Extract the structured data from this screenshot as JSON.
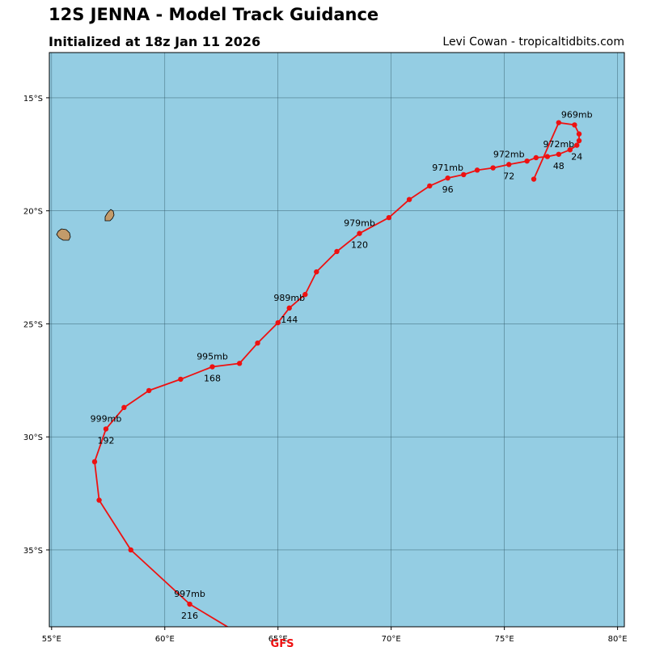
{
  "title": "12S JENNA - Model Track Guidance",
  "subtitle": "Initialized at 18z Jan 11 2026",
  "credit": "Levi Cowan - tropicaltidbits.com",
  "colors": {
    "ocean": "#94cde3",
    "land": "#c39b6a",
    "track": "#ee1111",
    "grid": "#2f5564"
  },
  "map": {
    "lon_range": [
      54.9,
      80.3
    ],
    "lat_range": [
      -38.4,
      -13.0
    ],
    "x_ticks": [
      {
        "value": 55,
        "label": "55°E"
      },
      {
        "value": 60,
        "label": "60°E"
      },
      {
        "value": 65,
        "label": "65°E"
      },
      {
        "value": 70,
        "label": "70°E"
      },
      {
        "value": 75,
        "label": "75°E"
      },
      {
        "value": 80,
        "label": "80°E"
      }
    ],
    "y_ticks": [
      {
        "value": -15,
        "label": "15°S"
      },
      {
        "value": -20,
        "label": "20°S"
      },
      {
        "value": -25,
        "label": "25°S"
      },
      {
        "value": -30,
        "label": "30°S"
      },
      {
        "value": -35,
        "label": "35°S"
      }
    ],
    "islands": [
      {
        "name": "Réunion",
        "lon": 55.5,
        "lat": -21.1
      },
      {
        "name": "Mauritius",
        "lon": 57.55,
        "lat": -20.25
      }
    ]
  },
  "track": {
    "model": "GFS",
    "points": [
      {
        "lon": 76.3,
        "lat": -18.6
      },
      {
        "lon": 77.4,
        "lat": -16.1
      },
      {
        "lon": 78.1,
        "lat": -16.2
      },
      {
        "lon": 78.3,
        "lat": -16.6
      },
      {
        "lon": 78.3,
        "lat": -16.9
      },
      {
        "lon": 78.2,
        "lat": -17.1
      },
      {
        "lon": 77.9,
        "lat": -17.3
      },
      {
        "lon": 77.4,
        "lat": -17.5
      },
      {
        "lon": 76.9,
        "lat": -17.6
      },
      {
        "lon": 76.4,
        "lat": -17.65
      },
      {
        "lon": 76.0,
        "lat": -17.8
      },
      {
        "lon": 75.2,
        "lat": -17.95
      },
      {
        "lon": 74.5,
        "lat": -18.1
      },
      {
        "lon": 73.8,
        "lat": -18.2
      },
      {
        "lon": 73.2,
        "lat": -18.4
      },
      {
        "lon": 72.5,
        "lat": -18.55
      },
      {
        "lon": 71.7,
        "lat": -18.9
      },
      {
        "lon": 70.8,
        "lat": -19.5
      },
      {
        "lon": 69.9,
        "lat": -20.3
      },
      {
        "lon": 68.6,
        "lat": -21.0
      },
      {
        "lon": 67.6,
        "lat": -21.8
      },
      {
        "lon": 66.7,
        "lat": -22.7
      },
      {
        "lon": 66.2,
        "lat": -23.7
      },
      {
        "lon": 65.5,
        "lat": -24.3
      },
      {
        "lon": 65.0,
        "lat": -24.95
      },
      {
        "lon": 64.1,
        "lat": -25.85
      },
      {
        "lon": 63.3,
        "lat": -26.75
      },
      {
        "lon": 62.1,
        "lat": -26.9
      },
      {
        "lon": 60.7,
        "lat": -27.45
      },
      {
        "lon": 59.3,
        "lat": -27.95
      },
      {
        "lon": 58.2,
        "lat": -28.7
      },
      {
        "lon": 57.4,
        "lat": -29.65
      },
      {
        "lon": 56.9,
        "lat": -31.1
      },
      {
        "lon": 57.1,
        "lat": -32.8
      },
      {
        "lon": 58.5,
        "lat": -35.0
      },
      {
        "lon": 61.1,
        "lat": -37.4
      },
      {
        "lon": 63.1,
        "lat": -38.6
      }
    ],
    "pressure_labels": [
      {
        "text": "969mb",
        "lon": 78.2,
        "lat": -16.2
      },
      {
        "text": "972mb",
        "lon": 77.4,
        "lat": -17.5
      },
      {
        "text": "972mb",
        "lon": 75.2,
        "lat": -17.95
      },
      {
        "text": "971mb",
        "lon": 72.5,
        "lat": -18.55
      },
      {
        "text": "979mb",
        "lon": 68.6,
        "lat": -21.0
      },
      {
        "text": "989mb",
        "lon": 65.5,
        "lat": -24.3
      },
      {
        "text": "995mb",
        "lon": 62.1,
        "lat": -26.9
      },
      {
        "text": "999mb",
        "lon": 57.4,
        "lat": -29.65
      },
      {
        "text": "997mb",
        "lon": 61.1,
        "lat": -37.4
      }
    ],
    "hour_labels": [
      {
        "text": "24",
        "lon": 78.2,
        "lat": -17.1
      },
      {
        "text": "48",
        "lon": 77.4,
        "lat": -17.5
      },
      {
        "text": "72",
        "lon": 75.2,
        "lat": -17.95
      },
      {
        "text": "96",
        "lon": 72.5,
        "lat": -18.55
      },
      {
        "text": "120",
        "lon": 68.6,
        "lat": -21.0
      },
      {
        "text": "144",
        "lon": 65.5,
        "lat": -24.3
      },
      {
        "text": "168",
        "lon": 62.1,
        "lat": -26.9
      },
      {
        "text": "192",
        "lon": 57.4,
        "lat": -29.65
      },
      {
        "text": "216",
        "lon": 61.1,
        "lat": -37.4
      }
    ]
  }
}
